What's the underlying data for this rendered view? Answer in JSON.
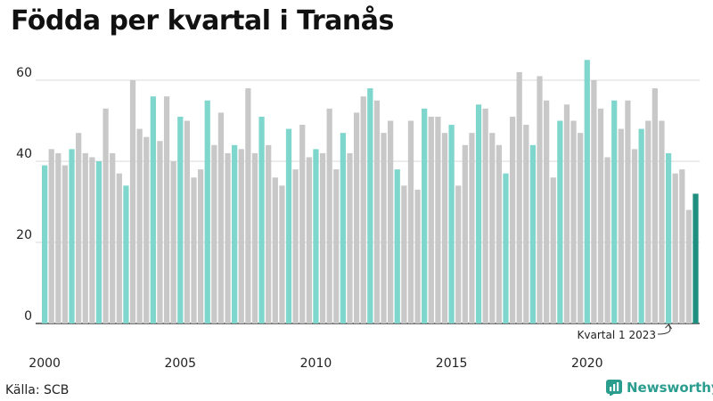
{
  "title": "Födda per kvartal i Tranås",
  "source": "Källa: SCB",
  "brand": "Newsworthy",
  "colors": {
    "q1": "#7fd6cc",
    "other": "#c8c8c8",
    "latest": "#1f8f80",
    "grid": "#d9d9d9",
    "axis": "#222222",
    "brand": "#2a9d8f"
  },
  "chart_data": {
    "type": "bar",
    "title": "Födda per kvartal i Tranås",
    "xlabel": "",
    "ylabel": "",
    "ylim": [
      0,
      66
    ],
    "yticks": [
      0,
      20,
      40,
      60
    ],
    "xtick_labels": [
      "2000",
      "2005",
      "2010",
      "2015",
      "2020"
    ],
    "grid": true,
    "start_year": 2000,
    "annotation": "Kvartal 1 2023",
    "values": [
      39,
      43,
      42,
      39,
      43,
      47,
      42,
      41,
      40,
      53,
      42,
      37,
      34,
      60,
      48,
      46,
      56,
      45,
      56,
      40,
      51,
      50,
      36,
      38,
      55,
      44,
      52,
      42,
      44,
      43,
      58,
      42,
      51,
      44,
      36,
      34,
      48,
      38,
      49,
      41,
      43,
      42,
      53,
      38,
      47,
      42,
      52,
      56,
      58,
      55,
      47,
      50,
      38,
      34,
      50,
      33,
      53,
      51,
      51,
      47,
      49,
      34,
      44,
      47,
      54,
      53,
      47,
      44,
      37,
      51,
      62,
      49,
      44,
      61,
      55,
      36,
      50,
      54,
      50,
      47,
      65,
      60,
      53,
      41,
      55,
      48,
      55,
      43,
      48,
      50,
      58,
      50,
      42,
      37,
      38,
      28,
      32
    ]
  }
}
